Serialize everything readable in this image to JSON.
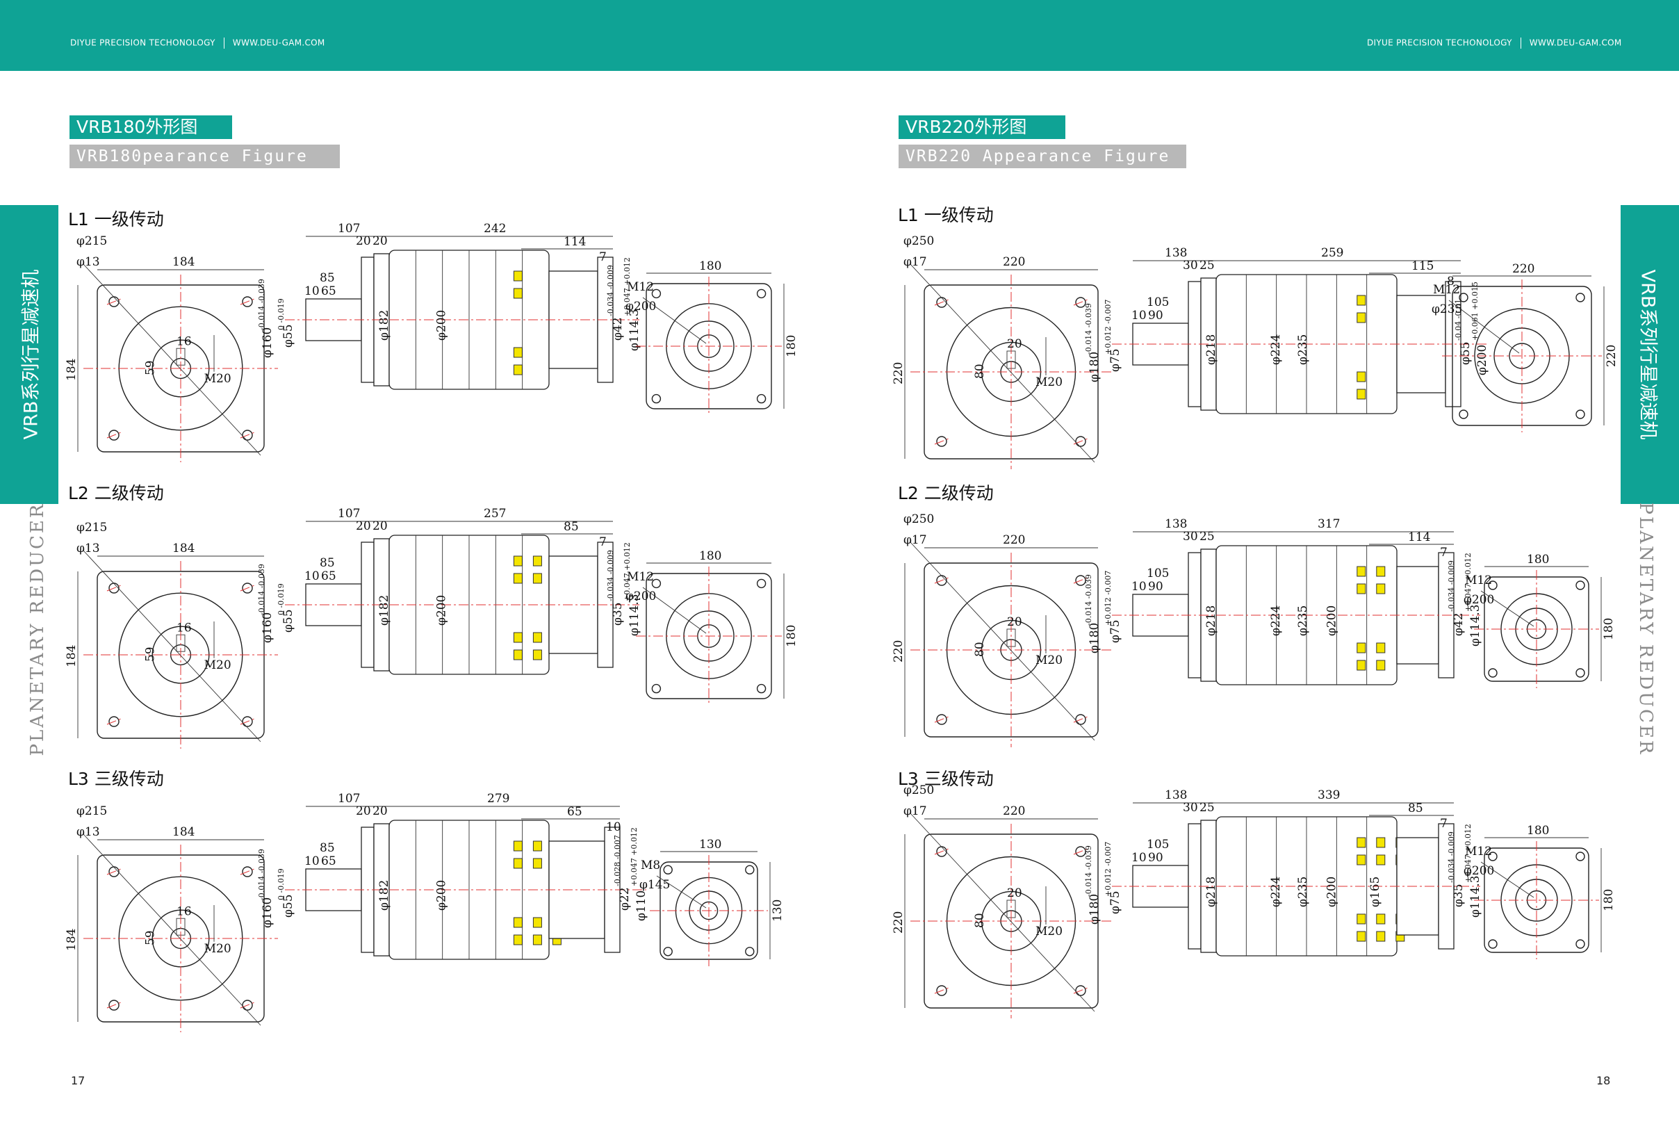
{
  "header": {
    "company": "DIYUE PRECISION TECHONOLOGY",
    "website": "WWW.DEU-GAM.COM"
  },
  "left_page": {
    "title_cn": "VRB180外形图",
    "title_en": "VRB180pearance Figure",
    "page_number": "17",
    "stages": [
      {
        "label": "L1 一级传动",
        "front": {
          "pcd": "φ215",
          "hole": "φ13",
          "width": "184",
          "height": "184",
          "key": "16",
          "shaft_h": "59",
          "thread": "M20"
        },
        "side": {
          "len_a": "107",
          "len_b": "242",
          "len_c": "114",
          "len_d": "7",
          "len_e": "85",
          "len_f": "20",
          "len_g": "20",
          "len_h": "10",
          "len_i": "65",
          "pilot": "φ160",
          "pilot_tol": "-0.014 -0.039",
          "shaft": "φ55",
          "shaft_tol": "0 -0.019",
          "dia_a": "φ182",
          "dia_b": "φ200",
          "out_bore": "φ42",
          "out_bore_tol": "-0.034 -0.009",
          "out_pilot": "φ114.3",
          "out_pilot_tol": "+0.047 +0.012"
        },
        "rear": {
          "width": "180",
          "height": "180",
          "thread": "M12",
          "pcd": "φ200"
        }
      },
      {
        "label": "L2 二级传动",
        "front": {
          "pcd": "φ215",
          "hole": "φ13",
          "width": "184",
          "height": "184",
          "key": "16",
          "shaft_h": "59",
          "thread": "M20"
        },
        "side": {
          "len_a": "107",
          "len_b": "257",
          "len_c": "85",
          "len_d": "7",
          "len_e": "85",
          "len_f": "20",
          "len_g": "20",
          "len_h": "10",
          "len_i": "65",
          "pilot": "φ160",
          "pilot_tol": "-0.014 -0.039",
          "shaft": "φ55",
          "shaft_tol": "0 -0.019",
          "dia_a": "φ182",
          "dia_b": "φ200",
          "out_bore": "φ35",
          "out_bore_tol": "-0.034 -0.009",
          "out_pilot": "φ114.3",
          "out_pilot_tol": "+0.047 +0.012"
        },
        "rear": {
          "width": "180",
          "height": "180",
          "thread": "M12",
          "pcd": "φ200"
        }
      },
      {
        "label": "L3 三级传动",
        "front": {
          "pcd": "φ215",
          "hole": "φ13",
          "width": "184",
          "height": "184",
          "key": "16",
          "shaft_h": "59",
          "thread": "M20"
        },
        "side": {
          "len_a": "107",
          "len_b": "279",
          "len_c": "65",
          "len_d": "10",
          "len_e": "85",
          "len_f": "20",
          "len_g": "20",
          "len_h": "10",
          "len_i": "65",
          "pilot": "φ160",
          "pilot_tol": "-0.014 -0.039",
          "shaft": "φ55",
          "shaft_tol": "0 -0.019",
          "dia_a": "φ182",
          "dia_b": "φ200",
          "out_bore": "φ22",
          "out_bore_tol": "-0.028 -0.007",
          "out_pilot": "φ110",
          "out_pilot_tol": "+0.047 +0.012"
        },
        "rear": {
          "width": "130",
          "height": "130",
          "thread": "M8",
          "pcd": "φ145"
        }
      }
    ]
  },
  "right_page": {
    "title_cn": "VRB220外形图",
    "title_en": "VRB220 Appearance Figure",
    "page_number": "18",
    "stages": [
      {
        "label": "L1 一级传动",
        "front": {
          "pcd": "φ250",
          "hole": "φ17",
          "width": "220",
          "height": "220",
          "key": "20",
          "shaft_h": "80",
          "thread": "M20"
        },
        "side": {
          "len_a": "138",
          "len_b": "259",
          "len_c": "115",
          "len_d": "8",
          "len_e": "105",
          "len_f": "30",
          "len_g": "25",
          "len_h": "10",
          "len_i": "90",
          "pilot": "φ180",
          "pilot_tol": "-0.014 -0.039",
          "shaft": "φ75",
          "shaft_tol": "+0.012 -0.007",
          "dia_a": "φ218",
          "dia_b": "φ224",
          "dia_c": "φ235",
          "out_bore": "φ55",
          "out_bore_tol": "-0.04 -0.01",
          "out_pilot": "φ200",
          "out_pilot_tol": "+0.061 +0.015"
        },
        "rear": {
          "width": "220",
          "height": "220",
          "thread": "M12",
          "pcd": "φ235"
        }
      },
      {
        "label": "L2 二级传动",
        "front": {
          "pcd": "φ250",
          "hole": "φ17",
          "width": "220",
          "height": "220",
          "key": "20",
          "shaft_h": "80",
          "thread": "M20"
        },
        "side": {
          "len_a": "138",
          "len_b": "317",
          "len_c": "114",
          "len_d": "7",
          "len_e": "105",
          "len_f": "30",
          "len_g": "25",
          "len_h": "10",
          "len_i": "90",
          "pilot": "φ180",
          "pilot_tol": "-0.014 -0.039",
          "shaft": "φ75",
          "shaft_tol": "+0.012 -0.007",
          "dia_a": "φ218",
          "dia_b": "φ224",
          "dia_c": "φ235",
          "dia_d": "φ200",
          "out_bore": "φ42",
          "out_bore_tol": "-0.034 -0.009",
          "out_pilot": "φ114.3",
          "out_pilot_tol": "+0.047 +0.012"
        },
        "rear": {
          "width": "180",
          "height": "180",
          "thread": "M12",
          "pcd": "φ200"
        }
      },
      {
        "label": "L3 三级传动",
        "front": {
          "pcd": "φ250",
          "hole": "φ17",
          "width": "220",
          "height": "220",
          "key": "20",
          "shaft_h": "80",
          "thread": "M20"
        },
        "side": {
          "len_a": "138",
          "len_b": "339",
          "len_c": "85",
          "len_d": "7",
          "len_e": "105",
          "len_f": "30",
          "len_g": "25",
          "len_h": "10",
          "len_i": "90",
          "pilot": "φ180",
          "pilot_tol": "-0.014 -0.039",
          "shaft": "φ75",
          "shaft_tol": "+0.012 -0.007",
          "dia_a": "φ218",
          "dia_b": "φ224",
          "dia_c": "φ235",
          "dia_d": "φ200",
          "dia_e": "φ165",
          "out_bore": "φ35",
          "out_bore_tol": "-0.034 -0.009",
          "out_pilot": "φ114.3",
          "out_pilot_tol": "+0.047 +0.012"
        },
        "rear": {
          "width": "180",
          "height": "180",
          "thread": "M12",
          "pcd": "φ200"
        }
      }
    ]
  },
  "side_tabs": {
    "cn": "VRB系列行星减速机",
    "en": "PLANETARY REDUCER"
  },
  "colors": {
    "accent": "#0fa395",
    "subtitle_bg": "#b8b8b8",
    "centerline": "#e03030",
    "marker": "#f4e500"
  }
}
